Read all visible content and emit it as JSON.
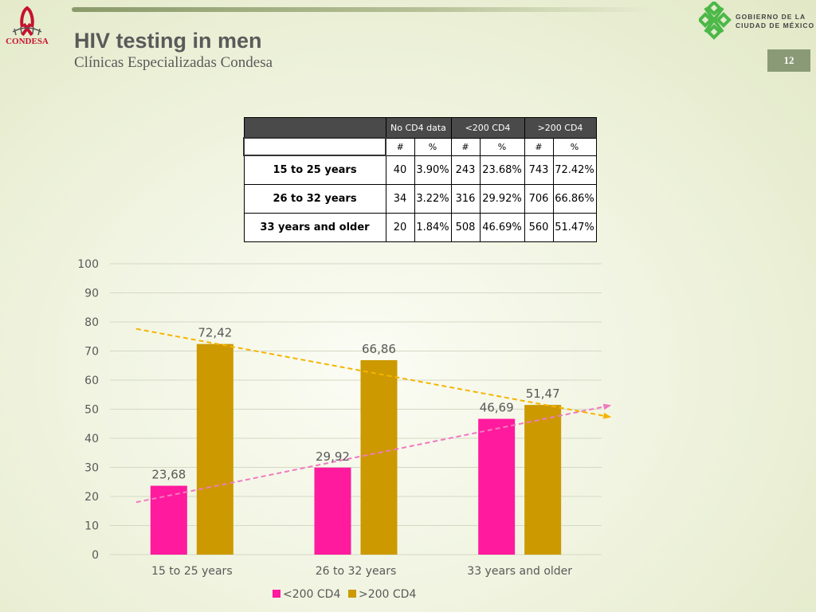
{
  "header": {
    "title": "HIV testing in men",
    "subtitle": "Clínicas Especializadas Condesa",
    "page_number": "12",
    "left_logo_text": "CONDESA",
    "right_logo_line1": "GOBIERNO DE LA",
    "right_logo_line2": "CIUDAD DE MÉXICO"
  },
  "table": {
    "groups": [
      "No CD4 data",
      "<200 CD4",
      ">200 CD4"
    ],
    "subheaders": [
      "#",
      "%",
      "#",
      "%",
      "#",
      "%"
    ],
    "rows": [
      {
        "label": "15 to 25 years",
        "cells": [
          "40",
          "3.90%",
          "243",
          "23.68%",
          "743",
          "72.42%"
        ]
      },
      {
        "label": "26 to 32 years",
        "cells": [
          "34",
          "3.22%",
          "316",
          "29.92%",
          "706",
          "66.86%"
        ]
      },
      {
        "label": "33  years and older",
        "cells": [
          "20",
          "1.84%",
          "508",
          "46.69%",
          "560",
          "51.47%"
        ]
      }
    ]
  },
  "chart_data": {
    "type": "bar",
    "categories": [
      "15 to 25 years",
      "26 to 32 years",
      "33  years and older"
    ],
    "series": [
      {
        "name": "<200 CD4",
        "values": [
          23.68,
          29.92,
          46.69
        ],
        "labels": [
          "23,68",
          "29,92",
          "46,69"
        ],
        "color": "#ff1a9e"
      },
      {
        "name": ">200 CD4",
        "values": [
          72.42,
          66.86,
          51.47
        ],
        "labels": [
          "72,42",
          "66,86",
          "51,47"
        ],
        "color": "#cc9900"
      }
    ],
    "trendlines": [
      {
        "series": "<200 CD4",
        "color": "#f07ac0",
        "style": "dashed"
      },
      {
        "series": ">200 CD4",
        "color": "#f5b400",
        "style": "dashed"
      }
    ],
    "ylim": [
      0,
      100
    ],
    "yticks": [
      0,
      10,
      20,
      30,
      40,
      50,
      60,
      70,
      80,
      90,
      100
    ],
    "grid": true,
    "legend_position": "bottom"
  }
}
